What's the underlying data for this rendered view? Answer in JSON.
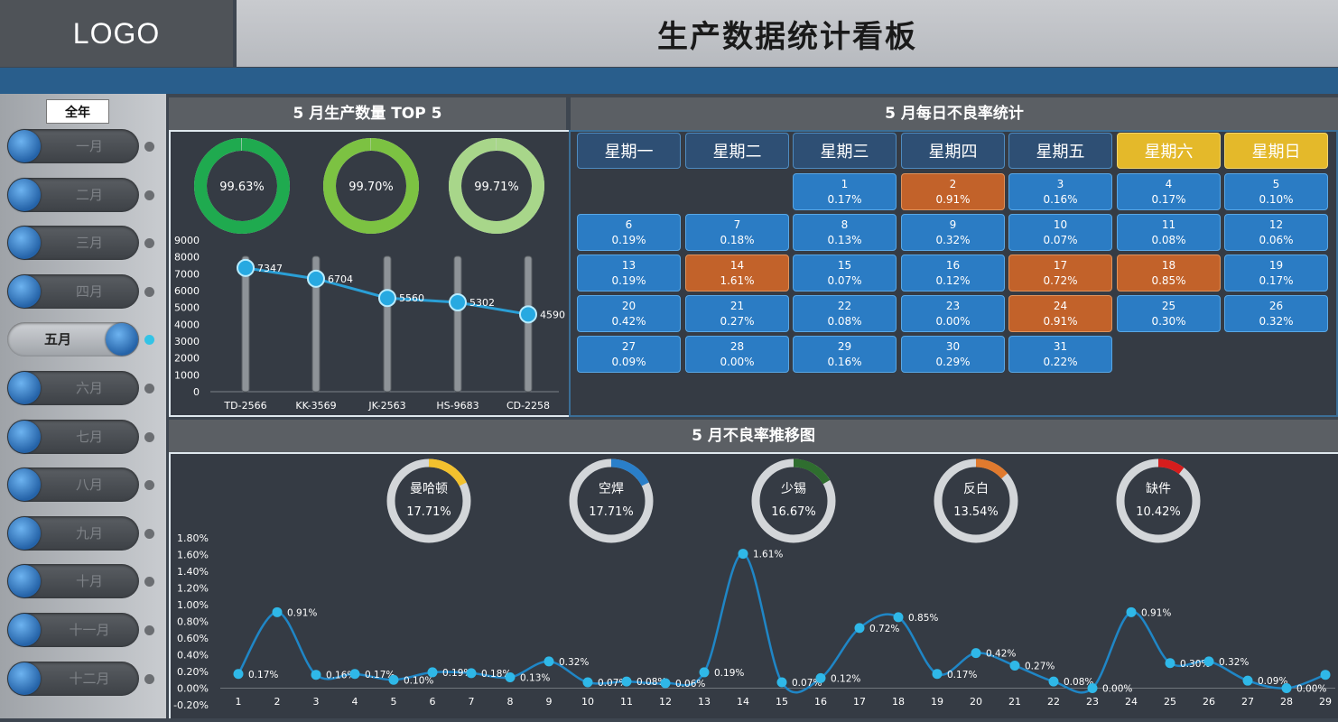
{
  "header": {
    "logo": "LOGO",
    "title": "生产数据统计看板"
  },
  "sidebar": {
    "year_button": "全年",
    "months": [
      {
        "label": "一月",
        "active": false
      },
      {
        "label": "二月",
        "active": false
      },
      {
        "label": "三月",
        "active": false
      },
      {
        "label": "四月",
        "active": false
      },
      {
        "label": "五月",
        "active": true
      },
      {
        "label": "六月",
        "active": false
      },
      {
        "label": "七月",
        "active": false
      },
      {
        "label": "八月",
        "active": false
      },
      {
        "label": "九月",
        "active": false
      },
      {
        "label": "十月",
        "active": false
      },
      {
        "label": "十一月",
        "active": false
      },
      {
        "label": "十二月",
        "active": false
      }
    ]
  },
  "top5": {
    "title": "5 月生产数量 TOP 5",
    "donuts": [
      {
        "label": "99.63%",
        "value": 0.9963,
        "color": "#1faa4f"
      },
      {
        "label": "99.70%",
        "value": 0.997,
        "color": "#7cc242"
      },
      {
        "label": "99.71%",
        "value": 0.9971,
        "color": "#a8d68a"
      }
    ]
  },
  "calendar": {
    "title": "5 月每日不良率统计",
    "weekdays": [
      "星期一",
      "星期二",
      "星期三",
      "星期四",
      "星期五",
      "星期六",
      "星期日"
    ],
    "days": [
      {
        "d": "1",
        "r": "0.17%",
        "hot": false
      },
      {
        "d": "2",
        "r": "0.91%",
        "hot": true
      },
      {
        "d": "3",
        "r": "0.16%",
        "hot": false
      },
      {
        "d": "4",
        "r": "0.17%",
        "hot": false
      },
      {
        "d": "5",
        "r": "0.10%",
        "hot": false
      },
      {
        "d": "6",
        "r": "0.19%",
        "hot": false
      },
      {
        "d": "7",
        "r": "0.18%",
        "hot": false
      },
      {
        "d": "8",
        "r": "0.13%",
        "hot": false
      },
      {
        "d": "9",
        "r": "0.32%",
        "hot": false
      },
      {
        "d": "10",
        "r": "0.07%",
        "hot": false
      },
      {
        "d": "11",
        "r": "0.08%",
        "hot": false
      },
      {
        "d": "12",
        "r": "0.06%",
        "hot": false
      },
      {
        "d": "13",
        "r": "0.19%",
        "hot": false
      },
      {
        "d": "14",
        "r": "1.61%",
        "hot": true
      },
      {
        "d": "15",
        "r": "0.07%",
        "hot": false
      },
      {
        "d": "16",
        "r": "0.12%",
        "hot": false
      },
      {
        "d": "17",
        "r": "0.72%",
        "hot": true
      },
      {
        "d": "18",
        "r": "0.85%",
        "hot": true
      },
      {
        "d": "19",
        "r": "0.17%",
        "hot": false
      },
      {
        "d": "20",
        "r": "0.42%",
        "hot": false
      },
      {
        "d": "21",
        "r": "0.27%",
        "hot": false
      },
      {
        "d": "22",
        "r": "0.08%",
        "hot": false
      },
      {
        "d": "23",
        "r": "0.00%",
        "hot": false
      },
      {
        "d": "24",
        "r": "0.91%",
        "hot": true
      },
      {
        "d": "25",
        "r": "0.30%",
        "hot": false
      },
      {
        "d": "26",
        "r": "0.32%",
        "hot": false
      },
      {
        "d": "27",
        "r": "0.09%",
        "hot": false
      },
      {
        "d": "28",
        "r": "0.00%",
        "hot": false
      },
      {
        "d": "29",
        "r": "0.16%",
        "hot": false
      },
      {
        "d": "30",
        "r": "0.29%",
        "hot": false
      },
      {
        "d": "31",
        "r": "0.22%",
        "hot": false
      }
    ]
  },
  "trend": {
    "title": "5 月不良率推移图",
    "defects": [
      {
        "name": "曼哈顿",
        "label": "17.71%",
        "value": 0.1771,
        "color": "#f2c12e"
      },
      {
        "name": "空焊",
        "label": "17.71%",
        "value": 0.1771,
        "color": "#2a7fc9"
      },
      {
        "name": "少锡",
        "label": "16.67%",
        "value": 0.1667,
        "color": "#2f6e2f"
      },
      {
        "name": "反白",
        "label": "13.54%",
        "value": 0.1354,
        "color": "#e07a2e"
      },
      {
        "name": "缺件",
        "label": "10.42%",
        "value": 0.1042,
        "color": "#d61d1d"
      }
    ]
  },
  "chart_data": [
    {
      "type": "line",
      "categories": [
        "TD-2566",
        "KK-3569",
        "JK-2563",
        "HS-9683",
        "CD-2258"
      ],
      "values": [
        7347,
        6704,
        5560,
        5302,
        4590
      ],
      "yticks": [
        "9000",
        "8000",
        "7000",
        "6000",
        "5000",
        "4000",
        "3000",
        "2000",
        "1000",
        "0"
      ],
      "ylim": [
        0,
        9000
      ]
    },
    {
      "type": "line",
      "x": [
        "1",
        "2",
        "3",
        "4",
        "5",
        "6",
        "7",
        "8",
        "9",
        "10",
        "11",
        "12",
        "13",
        "14",
        "15",
        "16",
        "17",
        "18",
        "19",
        "20",
        "21",
        "22",
        "23",
        "24",
        "25",
        "26",
        "27",
        "28",
        "29"
      ],
      "values": [
        0.17,
        0.91,
        0.16,
        0.17,
        0.1,
        0.19,
        0.18,
        0.13,
        0.32,
        0.07,
        0.08,
        0.06,
        0.19,
        1.61,
        0.07,
        0.12,
        0.72,
        0.85,
        0.17,
        0.42,
        0.27,
        0.08,
        0.0,
        0.91,
        0.3,
        0.32,
        0.09,
        0.0,
        0.16
      ],
      "labels": [
        "0.17%",
        "0.91%",
        "0.16%",
        "0.17%",
        "0.10%",
        "0.19%",
        "0.18%",
        "0.13%",
        "0.32%",
        "0.07%",
        "0.08%",
        "0.06%",
        "0.19%",
        "1.61%",
        "0.07%",
        "0.12%",
        "0.72%",
        "0.85%",
        "0.17%",
        "0.42%",
        "0.27%",
        "0.08%",
        "0.00%",
        "0.91%",
        "0.30%",
        "0.32%",
        "0.09%",
        "0.00%",
        ""
      ],
      "yticks": [
        "1.80%",
        "1.60%",
        "1.40%",
        "1.20%",
        "1.00%",
        "0.80%",
        "0.60%",
        "0.40%",
        "0.20%",
        "0.00%",
        "-0.20%"
      ],
      "ylim": [
        -0.2,
        1.8
      ]
    }
  ]
}
